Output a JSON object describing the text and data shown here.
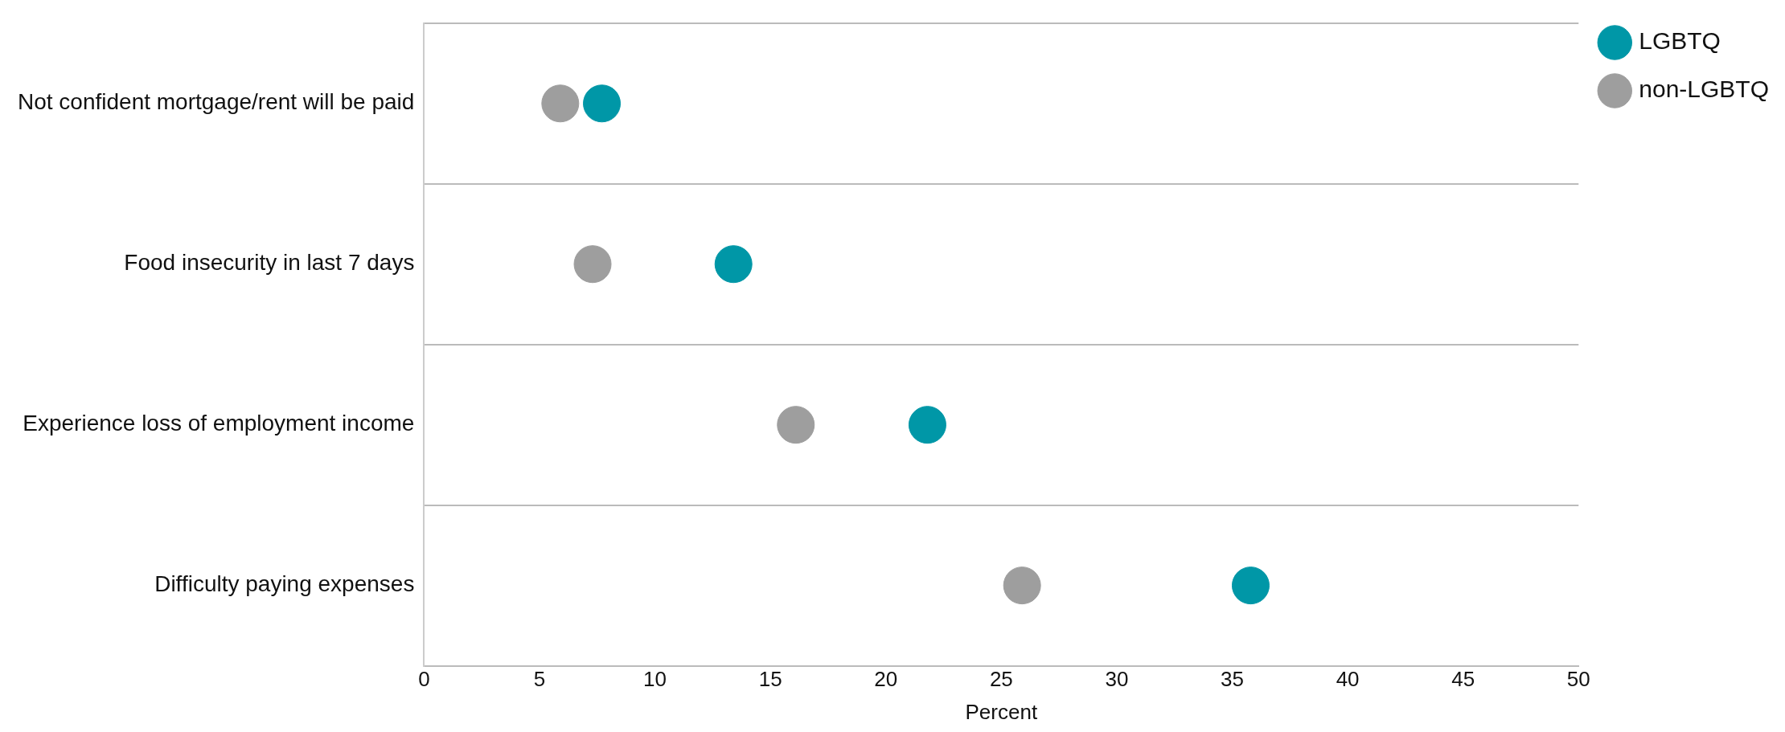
{
  "chart_data": {
    "type": "scatter",
    "orientation": "horizontal",
    "xlabel": "Percent",
    "categories": [
      "Not confident mortgage/rent will be paid",
      "Food insecurity in last 7 days",
      "Experience loss of employment income",
      "Difficulty paying expenses"
    ],
    "series": [
      {
        "name": "LGBTQ",
        "color": "#0097a7",
        "values": [
          7.7,
          13.4,
          21.8,
          35.8
        ]
      },
      {
        "name": "non-LGBTQ",
        "color": "#9e9e9e",
        "values": [
          5.9,
          7.3,
          16.1,
          25.9
        ]
      }
    ],
    "xlim": [
      0,
      50
    ],
    "xticks": [
      0,
      5,
      10,
      15,
      20,
      25,
      30,
      35,
      40,
      45,
      50
    ],
    "grid": "y",
    "legend": "top right",
    "marker": "circle"
  }
}
